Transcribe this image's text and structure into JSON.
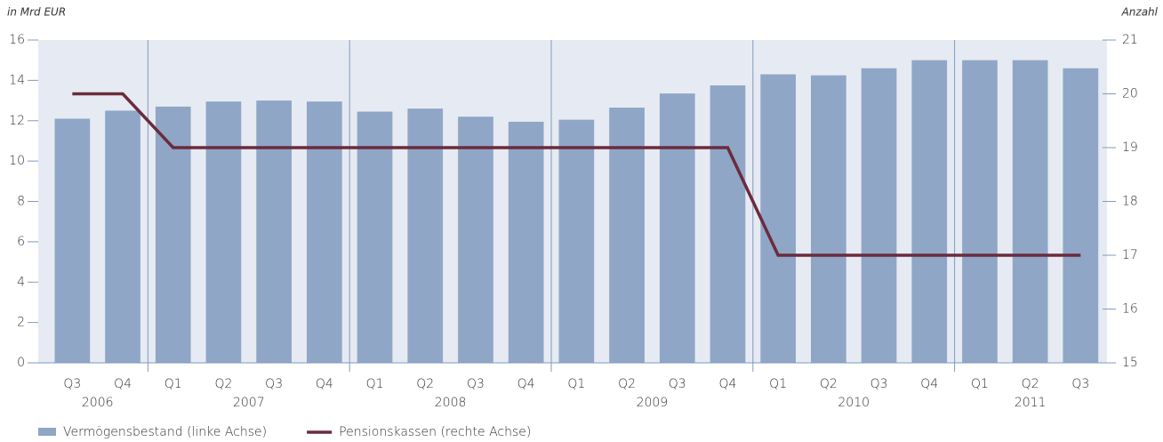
{
  "chart_data": {
    "type": "bar_line",
    "y_label": "in Mrd EUR",
    "y2_label": "Anzahl",
    "categories": [
      "Q3",
      "Q4",
      "Q1",
      "Q2",
      "Q3",
      "Q4",
      "Q1",
      "Q2",
      "Q3",
      "Q4",
      "Q1",
      "Q2",
      "Q3",
      "Q4",
      "Q1",
      "Q2",
      "Q3",
      "Q4",
      "Q1",
      "Q2",
      "Q3"
    ],
    "category_groups": [
      {
        "label": "2006",
        "count": 2
      },
      {
        "label": "2007",
        "count": 4
      },
      {
        "label": "2008",
        "count": 4
      },
      {
        "label": "2009",
        "count": 4
      },
      {
        "label": "2010",
        "count": 4
      },
      {
        "label": "2011",
        "count": 3
      }
    ],
    "series": [
      {
        "name": "Vermögensbestand (linke Achse)",
        "type": "bar",
        "color": "#8fa6c6",
        "values": [
          12.1,
          12.5,
          12.7,
          12.95,
          13.0,
          12.95,
          12.45,
          12.6,
          12.2,
          11.95,
          12.05,
          12.65,
          13.35,
          13.75,
          14.3,
          14.25,
          14.6,
          15.0,
          15.0,
          15.0,
          14.6
        ]
      },
      {
        "name": "Pensionskassen (rechte Achse)",
        "type": "line",
        "axis": "y2",
        "color": "#6b2b3d",
        "values": [
          20,
          20,
          19,
          19,
          19,
          19,
          19,
          19,
          19,
          19,
          19,
          19,
          19,
          19,
          17,
          17,
          17,
          17,
          17,
          17,
          17
        ]
      }
    ],
    "ylim": [
      0,
      16
    ],
    "yticks": [
      0,
      2,
      4,
      6,
      8,
      10,
      12,
      14,
      16
    ],
    "y2lim": [
      15,
      21
    ],
    "y2ticks": [
      15,
      16,
      17,
      18,
      19,
      20,
      21
    ],
    "grid": false
  }
}
